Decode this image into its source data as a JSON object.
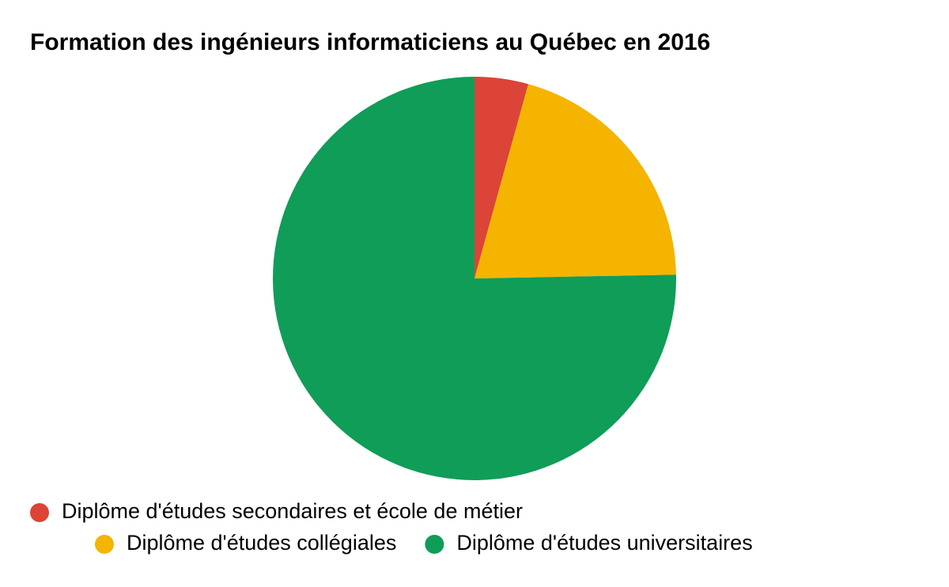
{
  "chart_data": {
    "type": "pie",
    "title": "Formation des ingénieurs informaticiens au Québec en 2016",
    "categories": [
      "Diplôme d'études secondaires et école de métier",
      "Diplôme d'études collégiales",
      "Diplôme d'études universitaires"
    ],
    "values": [
      4.3,
      20.4,
      75.3
    ],
    "colors": [
      "#db4437",
      "#f4b400",
      "#0f9d58"
    ],
    "legend": "bottom"
  }
}
